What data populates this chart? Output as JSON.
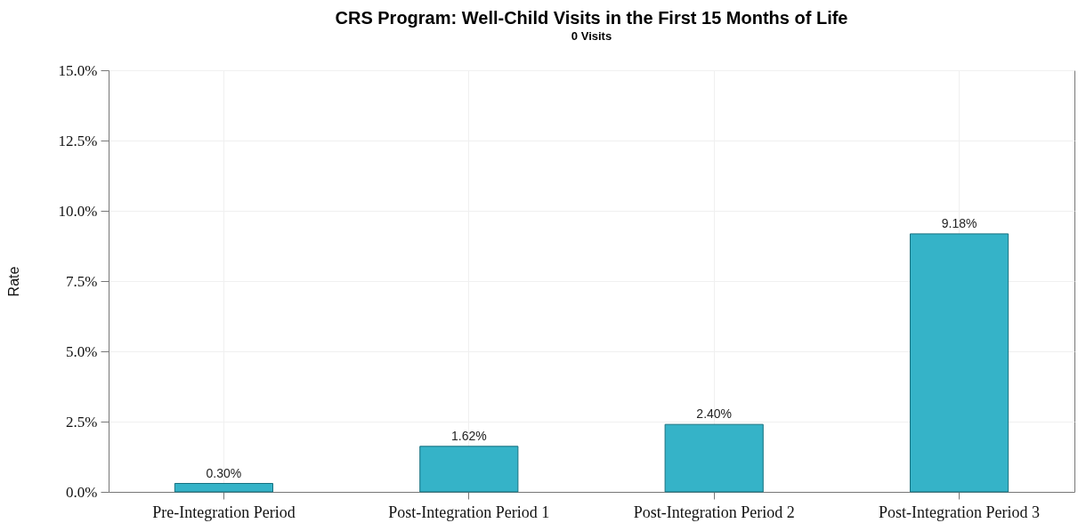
{
  "chart_data": {
    "type": "bar",
    "title": "CRS Program: Well-Child Visits in the First 15 Months of Life",
    "subtitle": "0 Visits",
    "ylabel": "Rate",
    "categories": [
      "Pre-Integration Period",
      "Post-Integration Period 1",
      "Post-Integration Period 2",
      "Post-Integration Period 3"
    ],
    "values": [
      0.3,
      1.62,
      2.4,
      9.18
    ],
    "color": "#35b3c8",
    "value_labels": [
      "0.30%",
      "1.62%",
      "2.40%",
      "9.18%"
    ],
    "ylim": [
      0,
      15
    ],
    "yticks": [
      {
        "value": 0,
        "label": "0.0%"
      },
      {
        "value": 2.5,
        "label": "2.5%"
      },
      {
        "value": 5,
        "label": "5.0%"
      },
      {
        "value": 7.5,
        "label": "7.5%"
      },
      {
        "value": 10,
        "label": "10.0%"
      },
      {
        "value": 12.5,
        "label": "12.5%"
      },
      {
        "value": 15,
        "label": "15.0%"
      }
    ],
    "grid": true
  }
}
